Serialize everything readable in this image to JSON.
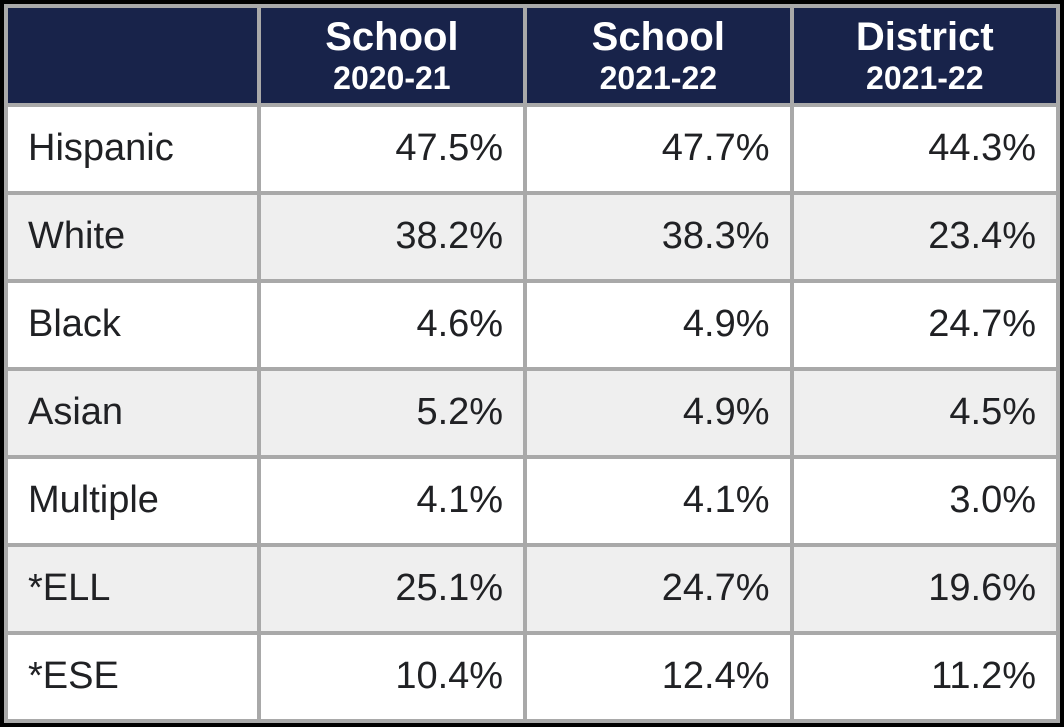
{
  "table": {
    "type": "table",
    "header_bg": "#18234a",
    "header_fg": "#ffffff",
    "row_bg_odd": "#ffffff",
    "row_bg_even": "#efefef",
    "cell_fg": "#202124",
    "border_color": "#a9a9a9",
    "title_fontsize": 40,
    "subtitle_fontsize": 32,
    "cell_fontsize": 38,
    "columns": [
      {
        "line1": "",
        "line2": ""
      },
      {
        "line1": "School",
        "line2": "2020-21"
      },
      {
        "line1": "School",
        "line2": "2021-22"
      },
      {
        "line1": "District",
        "line2": "2021-22"
      }
    ],
    "rows": [
      {
        "label": "Hispanic",
        "v0": "47.5%",
        "v1": "47.7%",
        "v2": "44.3%"
      },
      {
        "label": "White",
        "v0": "38.2%",
        "v1": "38.3%",
        "v2": "23.4%"
      },
      {
        "label": "Black",
        "v0": "4.6%",
        "v1": "4.9%",
        "v2": "24.7%"
      },
      {
        "label": "Asian",
        "v0": "5.2%",
        "v1": "4.9%",
        "v2": "4.5%"
      },
      {
        "label": "Multiple",
        "v0": "4.1%",
        "v1": "4.1%",
        "v2": "3.0%"
      },
      {
        "label": "*ELL",
        "v0": "25.1%",
        "v1": "24.7%",
        "v2": "19.6%"
      },
      {
        "label": "*ESE",
        "v0": "10.4%",
        "v1": "12.4%",
        "v2": "11.2%"
      }
    ]
  }
}
